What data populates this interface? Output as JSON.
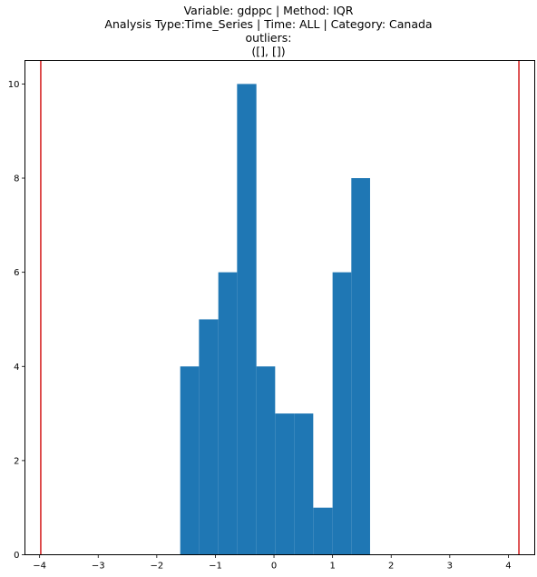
{
  "title_lines": [
    "Variable: gdppc | Method: IQR",
    "Analysis Type:Time_Series | Time: ALL | Category: Canada",
    "outliers:",
    "([], [])"
  ],
  "chart_data": {
    "type": "bar",
    "title": "Variable: gdppc | Method: IQR\nAnalysis Type:Time_Series | Time: ALL | Category: Canada\noutliers:\n([], [])",
    "xlim": [
      -4.25,
      4.45
    ],
    "ylim": [
      0,
      10.5
    ],
    "x_ticks": [
      -4,
      -3,
      -2,
      -1,
      0,
      1,
      2,
      3,
      4
    ],
    "y_ticks": [
      0,
      2,
      4,
      6,
      8,
      10
    ],
    "bins": [
      {
        "x0": -1.6,
        "x1": -1.28,
        "count": 4
      },
      {
        "x0": -1.28,
        "x1": -0.95,
        "count": 5
      },
      {
        "x0": -0.95,
        "x1": -0.63,
        "count": 6
      },
      {
        "x0": -0.63,
        "x1": -0.3,
        "count": 10
      },
      {
        "x0": -0.3,
        "x1": 0.02,
        "count": 4
      },
      {
        "x0": 0.02,
        "x1": 0.35,
        "count": 3
      },
      {
        "x0": 0.35,
        "x1": 0.67,
        "count": 3
      },
      {
        "x0": 0.67,
        "x1": 1.0,
        "count": 1
      },
      {
        "x0": 1.0,
        "x1": 1.32,
        "count": 6
      },
      {
        "x0": 1.32,
        "x1": 1.64,
        "count": 8
      }
    ],
    "threshold_lines": [
      -3.98,
      4.18
    ],
    "bar_color": "#1f77b4",
    "threshold_color": "#d62728",
    "grid": false
  }
}
